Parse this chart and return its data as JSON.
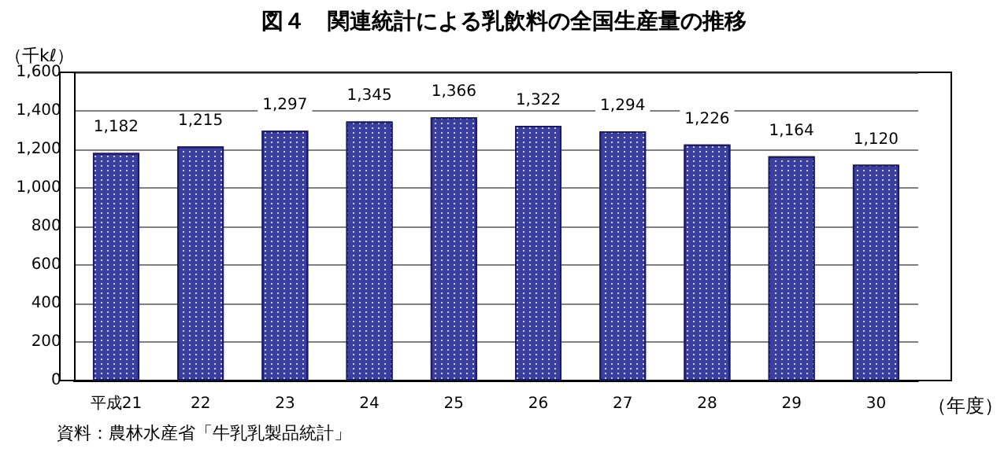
{
  "chart_data": {
    "type": "bar",
    "title": "図４　関連統計による乳飲料の全国生産量の推移",
    "ylabel": "（千kℓ）",
    "xlabel": "（年度）",
    "categories": [
      "平成21",
      "22",
      "23",
      "24",
      "25",
      "26",
      "27",
      "28",
      "29",
      "30"
    ],
    "values": [
      1182,
      1215,
      1297,
      1345,
      1366,
      1322,
      1294,
      1226,
      1164,
      1120
    ],
    "value_labels": [
      "1,182",
      "1,215",
      "1,297",
      "1,345",
      "1,366",
      "1,322",
      "1,294",
      "1,226",
      "1,164",
      "1,120"
    ],
    "color": "#3b3f9e",
    "ylim": [
      0,
      1600
    ],
    "yticks": [
      0,
      200,
      400,
      600,
      800,
      {
        "value": 1000,
        "label": "1,000"
      },
      {
        "value": 1200,
        "label": "1,200"
      },
      {
        "value": 1400,
        "label": "1,400"
      },
      {
        "value": 1600,
        "label": "1,600"
      }
    ],
    "grid": "y",
    "annotations": [
      "資料：農林水産省「牛乳乳製品統計」"
    ]
  }
}
